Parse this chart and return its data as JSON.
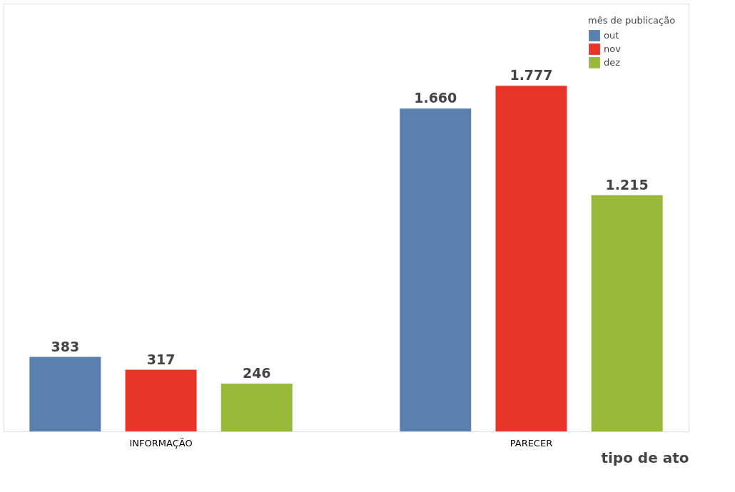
{
  "chart_data": {
    "type": "bar",
    "xlabel": "tipo de ato",
    "legend_title": "mês de publicação",
    "categories": [
      "INFORMAÇÃO",
      "PARECER"
    ],
    "series": [
      {
        "name": "out",
        "color": "#5b7fae",
        "values": [
          383,
          1660
        ],
        "value_labels": [
          "383",
          "1.660"
        ]
      },
      {
        "name": "nov",
        "color": "#e8352a",
        "values": [
          317,
          1777
        ],
        "value_labels": [
          "317",
          "1.777"
        ]
      },
      {
        "name": "dez",
        "color": "#9ab83a",
        "values": [
          246,
          1215
        ],
        "value_labels": [
          "246",
          "1.215"
        ]
      }
    ],
    "ylim": [
      0,
      2200
    ],
    "grid": false,
    "legend": "top right"
  }
}
